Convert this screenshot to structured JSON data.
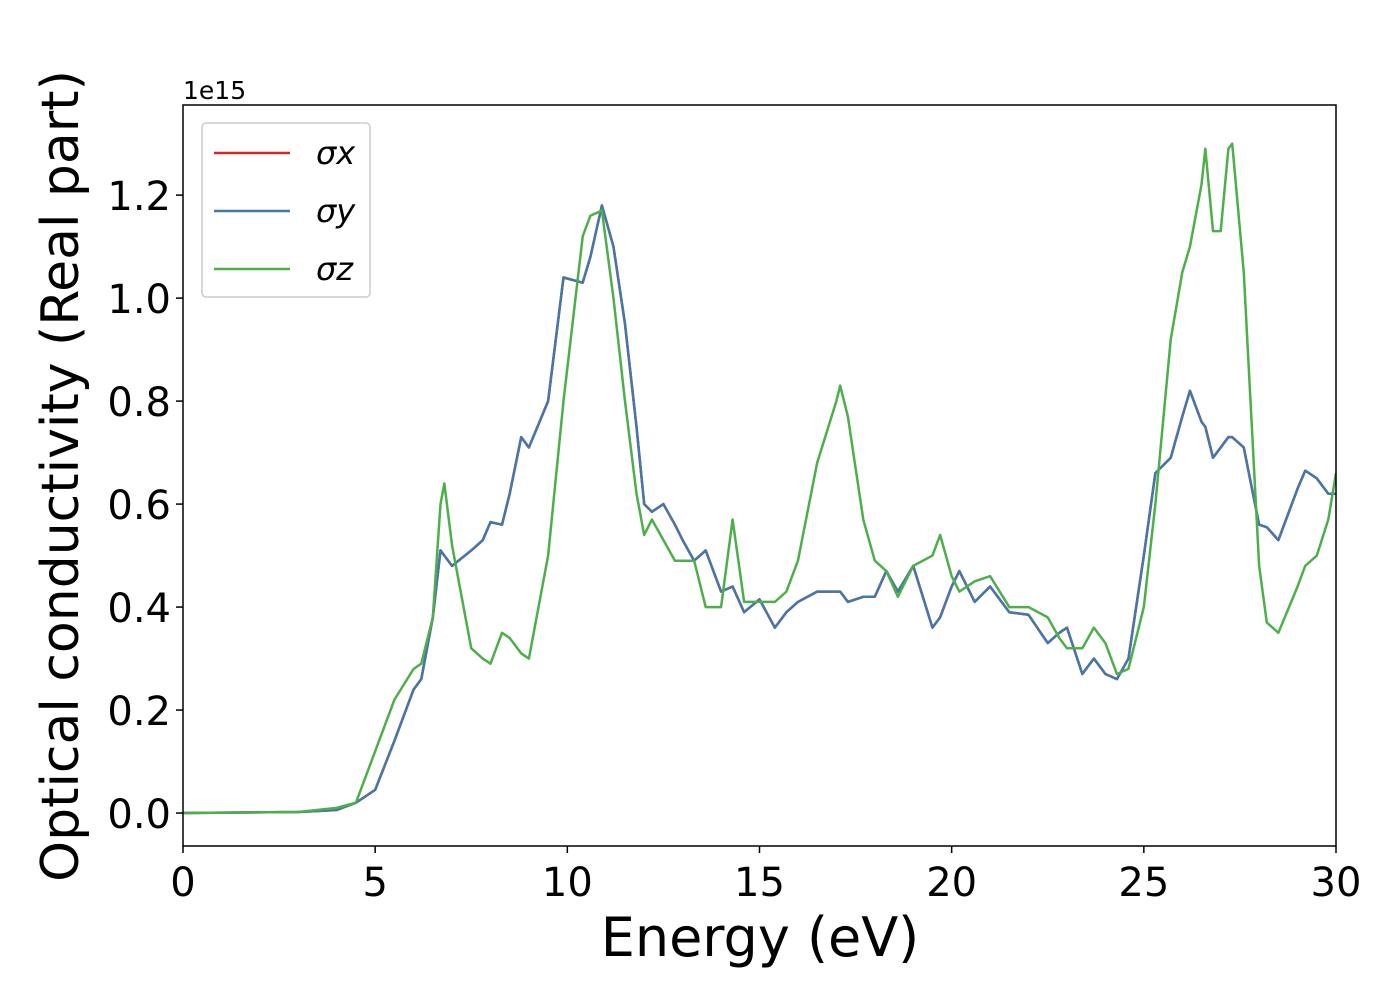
{
  "chart_data": {
    "type": "line",
    "xlabel": "Energy (eV)",
    "ylabel": "Optical conductivity (Real part)",
    "offset_label": "1e15",
    "xlim": [
      0,
      30
    ],
    "xticks": [
      0,
      5,
      10,
      15,
      20,
      25,
      30
    ],
    "ylim": [
      -0.064,
      1.375
    ],
    "yticks": [
      {
        "value": 0,
        "label": "0.0"
      },
      {
        "value": 0.2,
        "label": "0.2"
      },
      {
        "value": 0.4,
        "label": "0.4"
      },
      {
        "value": 0.6,
        "label": "0.6"
      },
      {
        "value": 0.8,
        "label": "0.8"
      },
      {
        "value": 1.0,
        "label": "1.0"
      },
      {
        "value": 1.2,
        "label": "1.2"
      }
    ],
    "legend": "upper left",
    "x": [
      0,
      3,
      4,
      4.5,
      5,
      5.5,
      6,
      6.2,
      6.5,
      6.7,
      6.8,
      7,
      7.5,
      7.8,
      8,
      8.3,
      8.5,
      8.8,
      9,
      9.5,
      9.9,
      10.4,
      10.6,
      10.9,
      11.2,
      11.5,
      11.8,
      12,
      12.2,
      12.5,
      12.8,
      13,
      13.3,
      13.6,
      14,
      14.3,
      14.6,
      15,
      15.4,
      15.7,
      16,
      16.5,
      17,
      17.1,
      17.3,
      17.7,
      18,
      18.3,
      18.6,
      19,
      19.5,
      19.7,
      20,
      20.2,
      20.6,
      21,
      21.5,
      22,
      22.5,
      22.8,
      23,
      23.4,
      23.7,
      24,
      24.3,
      24.6,
      25,
      25.3,
      25.7,
      26,
      26.2,
      26.5,
      26.6,
      26.8,
      27,
      27.2,
      27.3,
      27.6,
      28,
      28.2,
      28.5,
      29,
      29.2,
      29.5,
      29.8,
      30
    ],
    "series": [
      {
        "name": "σx",
        "color": "#d62728",
        "values": [
          0,
          0.002,
          0.006,
          0.02,
          0.045,
          0.14,
          0.24,
          0.26,
          0.38,
          0.51,
          0.5,
          0.48,
          0.51,
          0.53,
          0.565,
          0.56,
          0.62,
          0.73,
          0.71,
          0.8,
          1.04,
          1.03,
          1.08,
          1.18,
          1.1,
          0.95,
          0.75,
          0.6,
          0.585,
          0.6,
          0.56,
          0.53,
          0.49,
          0.51,
          0.43,
          0.44,
          0.39,
          0.415,
          0.36,
          0.39,
          0.41,
          0.43,
          0.43,
          0.43,
          0.41,
          0.42,
          0.42,
          0.47,
          0.43,
          0.48,
          0.36,
          0.38,
          0.44,
          0.47,
          0.41,
          0.44,
          0.39,
          0.385,
          0.33,
          0.35,
          0.36,
          0.27,
          0.3,
          0.27,
          0.26,
          0.3,
          0.5,
          0.66,
          0.69,
          0.77,
          0.82,
          0.76,
          0.75,
          0.69,
          0.71,
          0.73,
          0.73,
          0.71,
          0.56,
          0.555,
          0.53,
          0.63,
          0.665,
          0.65,
          0.62,
          0.62
        ]
      },
      {
        "name": "σy",
        "color": "#4477aa",
        "values": [
          0,
          0.002,
          0.006,
          0.02,
          0.045,
          0.14,
          0.24,
          0.26,
          0.38,
          0.51,
          0.5,
          0.48,
          0.51,
          0.53,
          0.565,
          0.56,
          0.62,
          0.73,
          0.71,
          0.8,
          1.04,
          1.03,
          1.08,
          1.18,
          1.1,
          0.95,
          0.75,
          0.6,
          0.585,
          0.6,
          0.56,
          0.53,
          0.49,
          0.51,
          0.43,
          0.44,
          0.39,
          0.415,
          0.36,
          0.39,
          0.41,
          0.43,
          0.43,
          0.43,
          0.41,
          0.42,
          0.42,
          0.47,
          0.43,
          0.48,
          0.36,
          0.38,
          0.44,
          0.47,
          0.41,
          0.44,
          0.39,
          0.385,
          0.33,
          0.35,
          0.36,
          0.27,
          0.3,
          0.27,
          0.26,
          0.3,
          0.5,
          0.66,
          0.69,
          0.77,
          0.82,
          0.76,
          0.75,
          0.69,
          0.71,
          0.73,
          0.73,
          0.71,
          0.56,
          0.555,
          0.53,
          0.63,
          0.665,
          0.65,
          0.62,
          0.62
        ]
      },
      {
        "name": "σz",
        "color": "#4daf4a",
        "values": [
          0,
          0.002,
          0.01,
          0.02,
          0.12,
          0.22,
          0.28,
          0.29,
          0.38,
          0.6,
          0.64,
          0.52,
          0.32,
          0.3,
          0.29,
          0.35,
          0.34,
          0.31,
          0.3,
          0.5,
          0.8,
          1.12,
          1.16,
          1.17,
          1.0,
          0.8,
          0.62,
          0.54,
          0.57,
          0.53,
          0.49,
          0.49,
          0.49,
          0.4,
          0.4,
          0.57,
          0.41,
          0.41,
          0.41,
          0.43,
          0.49,
          0.68,
          0.8,
          0.83,
          0.77,
          0.57,
          0.49,
          0.47,
          0.42,
          0.48,
          0.5,
          0.54,
          0.46,
          0.43,
          0.45,
          0.46,
          0.4,
          0.4,
          0.38,
          0.34,
          0.32,
          0.32,
          0.36,
          0.33,
          0.27,
          0.28,
          0.4,
          0.6,
          0.92,
          1.05,
          1.1,
          1.22,
          1.29,
          1.13,
          1.13,
          1.29,
          1.3,
          1.05,
          0.48,
          0.37,
          0.35,
          0.44,
          0.48,
          0.5,
          0.57,
          0.66
        ]
      }
    ]
  }
}
